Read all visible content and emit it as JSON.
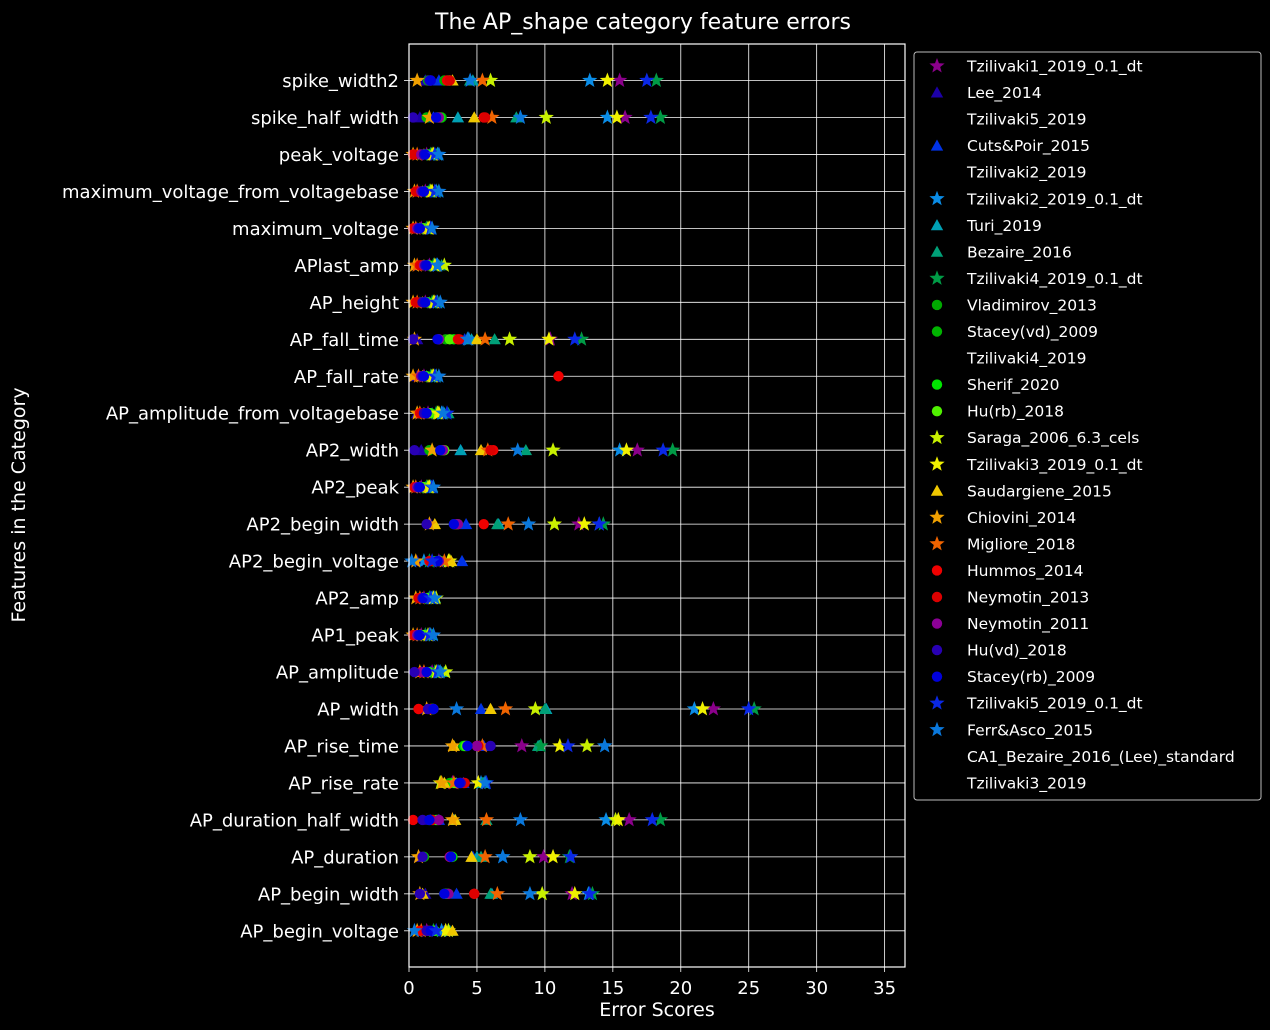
{
  "chart_data": {
    "type": "scatter",
    "title": "The AP_shape category feature errors",
    "xlabel": "Error Scores",
    "ylabel": "Features in the Category",
    "xlim": [
      0,
      36.5
    ],
    "xticks": [
      0,
      5,
      10,
      15,
      20,
      25,
      30,
      35
    ],
    "grid": true,
    "legend_position": "outside-right",
    "features": [
      "spike_width2",
      "spike_half_width",
      "peak_voltage",
      "maximum_voltage_from_voltagebase",
      "maximum_voltage",
      "APlast_amp",
      "AP_height",
      "AP_fall_time",
      "AP_fall_rate",
      "AP_amplitude_from_voltagebase",
      "AP2_width",
      "AP2_peak",
      "AP2_begin_width",
      "AP2_begin_voltage",
      "AP2_amp",
      "AP1_peak",
      "AP_amplitude",
      "AP_width",
      "AP_rise_time",
      "AP_rise_rate",
      "AP_duration_half_width",
      "AP_duration",
      "AP_begin_width",
      "AP_begin_voltage"
    ],
    "series": [
      {
        "name": "Tzilivaki1_2019_0.1_dt",
        "marker": "star",
        "color": "#8b008b",
        "values": [
          15.5,
          15.9,
          1.3,
          1.2,
          0.9,
          1.5,
          1.2,
          10.4,
          1.1,
          1.4,
          16.8,
          0.9,
          12.5,
          2.2,
          1.1,
          0.9,
          1.7,
          22.4,
          8.3,
          3.2,
          16.2,
          9.9,
          12.0,
          1.3
        ]
      },
      {
        "name": "Lee_2014",
        "marker": "triangle",
        "color": "#1c00a8",
        "values": [
          1.2,
          0.8,
          0.8,
          0.7,
          0.6,
          0.6,
          0.8,
          0.6,
          0.6,
          0.6,
          0.9,
          0.5,
          1.6,
          0.6,
          0.9,
          0.6,
          0.9,
          1.3,
          5.2,
          3.5,
          1.6,
          0.8,
          1.2,
          1.1
        ]
      },
      {
        "name": "Tzilivaki5_2019",
        "marker": "none",
        "color": "#000000",
        "values": []
      },
      {
        "name": "Cuts&Poir_2015",
        "marker": "triangle",
        "color": "#0032e6",
        "values": [
          2.2,
          1.8,
          1.5,
          1.4,
          1.2,
          1.4,
          1.5,
          4.1,
          1.3,
          1.7,
          3.8,
          1.2,
          4.2,
          3.9,
          1.4,
          1.3,
          1.6,
          5.3,
          5.5,
          4.0,
          2.2,
          4.7,
          3.5,
          2.6
        ]
      },
      {
        "name": "Tzilivaki2_2019",
        "marker": "none",
        "color": "#000000",
        "values": []
      },
      {
        "name": "Tzilivaki2_2019_0.1_dt",
        "marker": "star",
        "color": "#0a8ce6",
        "values": [
          13.3,
          14.6,
          2.1,
          2.0,
          1.6,
          2.0,
          2.1,
          4.4,
          2.0,
          2.4,
          15.5,
          1.6,
          14.0,
          1.1,
          1.7,
          1.6,
          2.2,
          21.0,
          14.4,
          5.3,
          14.5,
          6.9,
          13.2,
          2.4
        ]
      },
      {
        "name": "Turi_2019",
        "marker": "triangle",
        "color": "#00a0b4",
        "values": [
          4.7,
          3.6,
          2.1,
          1.9,
          1.5,
          2.2,
          2.0,
          4.6,
          1.9,
          2.6,
          3.8,
          1.5,
          6.6,
          2.3,
          1.9,
          1.5,
          2.4,
          10.1,
          9.6,
          5.5,
          3.3,
          5.0,
          6.1,
          2.9
        ]
      },
      {
        "name": "Bezaire_2016",
        "marker": "triangle",
        "color": "#00a078",
        "values": [
          4.5,
          7.9,
          2.0,
          2.1,
          1.4,
          2.4,
          2.1,
          6.3,
          2.0,
          2.9,
          8.6,
          1.7,
          6.5,
          2.2,
          1.9,
          1.7,
          2.6,
          10.0,
          9.5,
          5.4,
          5.7,
          5.3,
          6.0,
          3.0
        ]
      },
      {
        "name": "Tzilivaki4_2019_0.1_dt",
        "marker": "star",
        "color": "#009b46",
        "values": [
          18.2,
          18.5,
          1.6,
          1.5,
          1.3,
          1.8,
          1.7,
          12.7,
          1.6,
          2.0,
          19.4,
          1.3,
          14.3,
          1.5,
          1.5,
          1.2,
          1.9,
          25.4,
          9.7,
          5.6,
          18.5,
          11.8,
          13.5,
          1.8
        ]
      },
      {
        "name": "Vladimirov_2013",
        "marker": "circle",
        "color": "#00aa00",
        "values": [
          2.6,
          2.4,
          1.2,
          1.1,
          0.8,
          1.2,
          1.1,
          2.7,
          1.0,
          1.3,
          2.4,
          0.8,
          3.3,
          2.1,
          1.0,
          0.8,
          1.3,
          1.7,
          4.0,
          3.0,
          1.8,
          3.0,
          2.6,
          1.9
        ]
      },
      {
        "name": "Stacey(vd)_2009",
        "marker": "circle",
        "color": "#00b400",
        "values": [
          1.4,
          1.3,
          1.0,
          0.9,
          0.7,
          1.0,
          0.9,
          2.2,
          0.9,
          1.1,
          1.5,
          0.7,
          3.6,
          1.8,
          0.9,
          0.7,
          1.1,
          1.6,
          4.1,
          3.1,
          1.5,
          1.1,
          2.8,
          1.5
        ]
      },
      {
        "name": "Tzilivaki4_2019",
        "marker": "none",
        "color": "#000000",
        "values": []
      },
      {
        "name": "Sherif_2020",
        "marker": "circle",
        "color": "#00e600",
        "values": [
          2.9,
          2.3,
          1.4,
          1.4,
          1.0,
          1.5,
          1.4,
          3.3,
          1.3,
          1.6,
          2.5,
          1.0,
          3.5,
          2.0,
          1.2,
          1.0,
          1.5,
          1.8,
          4.1,
          3.3,
          2.0,
          3.2,
          2.9,
          1.9
        ]
      },
      {
        "name": "Hu(rb)_2018",
        "marker": "circle",
        "color": "#50f000",
        "values": [
          3.0,
          2.1,
          1.3,
          1.3,
          1.1,
          1.4,
          1.3,
          3.0,
          1.2,
          1.5,
          2.6,
          1.1,
          3.4,
          2.3,
          1.3,
          1.1,
          1.4,
          1.7,
          4.2,
          3.4,
          2.1,
          3.1,
          2.7,
          1.8
        ]
      },
      {
        "name": "Saraga_2006_6.3_cels",
        "marker": "star",
        "color": "#c8f000",
        "values": [
          6.0,
          10.1,
          1.7,
          1.6,
          1.4,
          2.6,
          1.8,
          7.4,
          1.7,
          2.1,
          10.6,
          1.4,
          10.7,
          3.0,
          2.0,
          1.4,
          2.7,
          9.3,
          13.1,
          2.3,
          15.2,
          8.9,
          9.8,
          2.9
        ]
      },
      {
        "name": "Tzilivaki3_2019_0.1_dt",
        "marker": "star",
        "color": "#f0f000",
        "values": [
          14.6,
          15.3,
          1.8,
          1.7,
          1.5,
          1.9,
          1.9,
          10.3,
          1.8,
          2.2,
          16.0,
          1.5,
          12.9,
          2.9,
          1.8,
          1.5,
          2.0,
          21.6,
          11.1,
          5.1,
          15.4,
          10.6,
          12.2,
          2.7
        ]
      },
      {
        "name": "Saudargiene_2015",
        "marker": "triangle",
        "color": "#f0c800",
        "values": [
          3.2,
          4.8,
          1.1,
          1.0,
          0.8,
          1.1,
          1.0,
          5.0,
          1.0,
          1.1,
          5.3,
          0.8,
          1.9,
          3.1,
          1.0,
          0.8,
          1.1,
          6.0,
          3.3,
          2.6,
          3.4,
          4.6,
          1.0,
          3.2
        ]
      },
      {
        "name": "Chiovini_2014",
        "marker": "star",
        "color": "#f0a000",
        "values": [
          0.6,
          1.5,
          0.3,
          0.4,
          0.3,
          0.4,
          0.3,
          0.4,
          0.3,
          0.6,
          1.7,
          0.3,
          1.5,
          0.5,
          0.5,
          0.3,
          0.8,
          1.3,
          3.2,
          2.4,
          3.2,
          0.7,
          0.8,
          0.6
        ]
      },
      {
        "name": "Migliore_2018",
        "marker": "star",
        "color": "#f06400",
        "values": [
          5.4,
          6.1,
          0.6,
          0.6,
          0.5,
          0.6,
          0.6,
          5.6,
          0.7,
          0.8,
          5.8,
          0.5,
          7.3,
          2.6,
          0.8,
          0.6,
          1.1,
          7.1,
          5.4,
          3.3,
          5.7,
          5.6,
          6.5,
          0.9
        ]
      },
      {
        "name": "Hummos_2014",
        "marker": "circle",
        "color": "#f00000",
        "values": [
          2.8,
          5.5,
          0.3,
          0.5,
          0.3,
          0.8,
          0.5,
          3.6,
          11.0,
          0.8,
          6.2,
          0.4,
          5.5,
          1.5,
          0.8,
          0.4,
          0.9,
          0.7,
          5.0,
          4.0,
          0.3,
          3.0,
          4.8,
          0.8
        ]
      },
      {
        "name": "Neymotin_2013",
        "marker": "circle",
        "color": "#dc0000",
        "values": [
          3.0,
          5.6,
          0.4,
          0.6,
          0.4,
          0.9,
          0.6,
          3.7,
          0.9,
          0.9,
          6.0,
          0.4,
          3.4,
          1.6,
          0.7,
          0.3,
          1.0,
          1.6,
          5.1,
          4.1,
          1.7,
          3.0,
          4.8,
          1.4
        ]
      },
      {
        "name": "Neymotin_2011",
        "marker": "circle",
        "color": "#8c0096",
        "values": [
          1.6,
          2.2,
          0.9,
          0.9,
          0.6,
          1.1,
          1.0,
          2.2,
          0.9,
          1.2,
          2.5,
          0.6,
          3.6,
          2.2,
          1.0,
          0.6,
          1.0,
          1.8,
          5.0,
          3.8,
          2.2,
          3.0,
          2.9,
          1.4
        ]
      },
      {
        "name": "Hu(vd)_2018",
        "marker": "circle",
        "color": "#2800b4",
        "values": [
          1.5,
          0.3,
          1.1,
          1.0,
          0.7,
          1.2,
          1.0,
          0.3,
          1.0,
          1.1,
          0.4,
          0.7,
          1.3,
          2.1,
          1.0,
          0.7,
          0.4,
          1.4,
          6.0,
          3.8,
          1.0,
          1.0,
          0.8,
          1.3
        ]
      },
      {
        "name": "Stacey(rb)_2009",
        "marker": "circle",
        "color": "#0000dc",
        "values": [
          1.6,
          2.0,
          1.2,
          1.1,
          0.8,
          1.3,
          1.2,
          2.1,
          1.1,
          1.3,
          2.3,
          0.8,
          3.3,
          2.1,
          1.1,
          0.8,
          1.3,
          1.8,
          4.3,
          3.7,
          1.5,
          3.1,
          2.6,
          1.6
        ]
      },
      {
        "name": "Tzilivaki5_2019_0.1_dt",
        "marker": "star",
        "color": "#0a28e6",
        "values": [
          17.5,
          17.8,
          1.9,
          1.9,
          1.6,
          2.1,
          2.0,
          12.2,
          1.9,
          2.8,
          18.7,
          1.7,
          14.0,
          1.7,
          1.6,
          1.5,
          2.1,
          25.0,
          11.7,
          5.7,
          17.9,
          11.9,
          13.3,
          2.0
        ]
      },
      {
        "name": "Ferr&Asco_2015",
        "marker": "star",
        "color": "#0a78dc",
        "values": [
          4.5,
          8.2,
          2.2,
          2.2,
          1.7,
          2.1,
          2.3,
          4.3,
          2.2,
          2.5,
          8.0,
          1.8,
          8.8,
          0.2,
          1.9,
          1.8,
          2.3,
          3.5,
          14.4,
          5.6,
          8.2,
          6.9,
          8.9,
          0.4
        ]
      },
      {
        "name": "CA1_Bezaire_2016_(Lee)_standard",
        "marker": "none",
        "color": "#000000",
        "values": []
      },
      {
        "name": "Tzilivaki3_2019",
        "marker": "none",
        "color": "#000000",
        "values": []
      }
    ]
  }
}
